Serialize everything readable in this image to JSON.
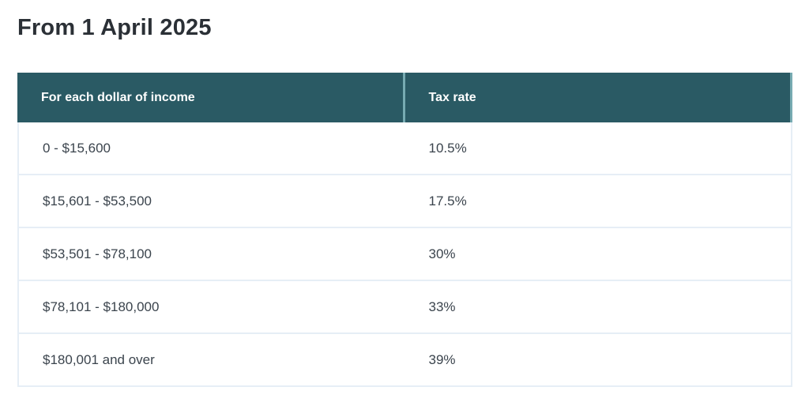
{
  "page": {
    "heading": "From 1 April 2025"
  },
  "table": {
    "columns": [
      {
        "label": "For each dollar of income"
      },
      {
        "label": "Tax rate"
      }
    ],
    "rows": [
      {
        "income": "0 - $15,600",
        "rate": "10.5%"
      },
      {
        "income": "$15,601 - $53,500",
        "rate": "17.5%"
      },
      {
        "income": "$53,501 - $78,100",
        "rate": "30%"
      },
      {
        "income": "$78,101 - $180,000",
        "rate": "33%"
      },
      {
        "income": "$180,001 and over",
        "rate": "39%"
      }
    ]
  },
  "colors": {
    "header_bg": "#2a5a64",
    "header_text": "#ffffff",
    "header_divider": "#77abb2",
    "row_border": "#e6eef6",
    "heading_text": "#2b3036",
    "body_text": "#3b444d"
  }
}
